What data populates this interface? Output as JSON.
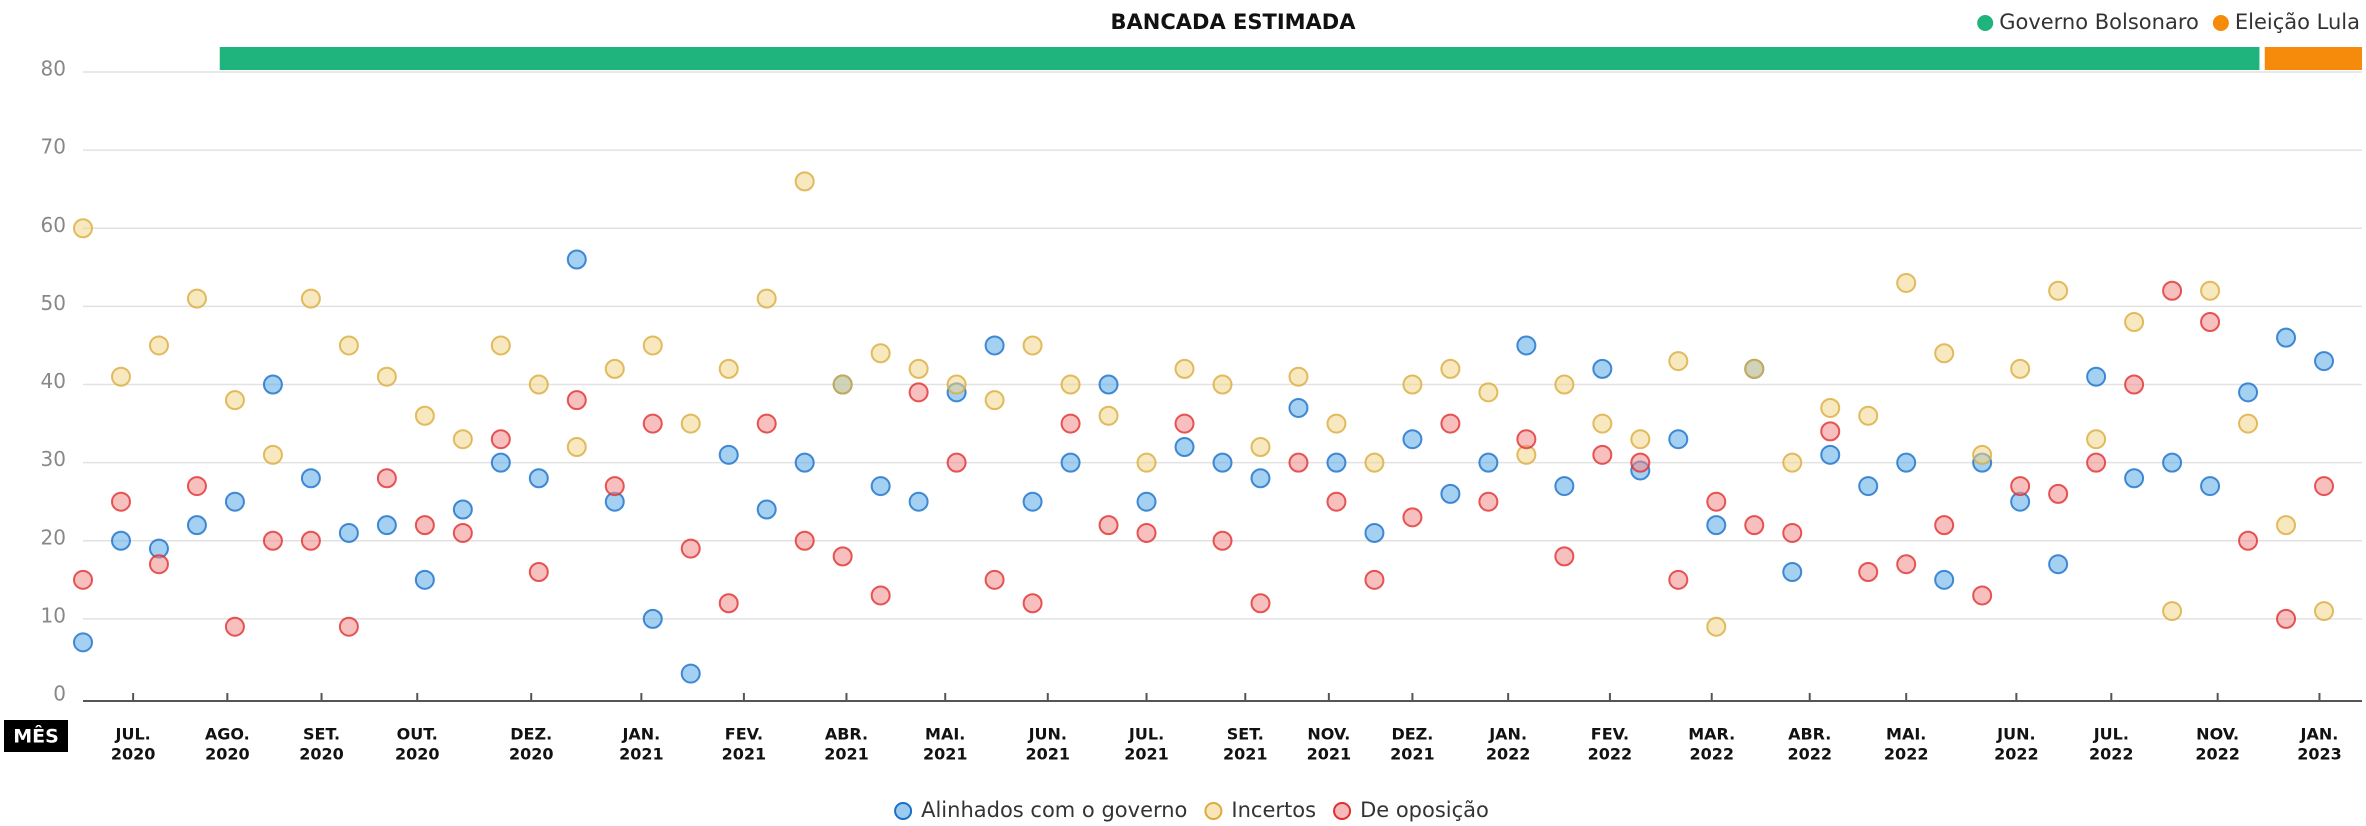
{
  "chart_data": {
    "type": "scatter",
    "title": "BANCADA ESTIMADA",
    "x_axis_name": "MÊS",
    "periods": [
      {
        "name": "Governo Bolsonaro",
        "color": "#1fb37e",
        "start": 18,
        "end": 286.5
      },
      {
        "name": "Eleição Lula",
        "color": "#f58a0b",
        "start": 287.2,
        "end": 300
      }
    ],
    "x": [
      0,
      5,
      10,
      15,
      20,
      25,
      30,
      35,
      40,
      45,
      50,
      55,
      60,
      65,
      70,
      75,
      80,
      85,
      90,
      95,
      100,
      105,
      110,
      115,
      120,
      125,
      130,
      135,
      140,
      145,
      150,
      155,
      160,
      165,
      170,
      175,
      180,
      185,
      190,
      195,
      200,
      205,
      210,
      215,
      220,
      225,
      230,
      235,
      240,
      245,
      250,
      255,
      260,
      265,
      270,
      275,
      280,
      285,
      290,
      295
    ],
    "xlim": [
      0,
      300
    ],
    "xticks": [
      {
        "value": 6.6,
        "label": "JUL.",
        "year": "2020"
      },
      {
        "value": 19,
        "label": "AGO.",
        "year": "2020"
      },
      {
        "value": 31.4,
        "label": "SET.",
        "year": "2020"
      },
      {
        "value": 44,
        "label": "OUT.",
        "year": "2020"
      },
      {
        "value": 59,
        "label": "DEZ.",
        "year": "2020"
      },
      {
        "value": 73.5,
        "label": "JAN.",
        "year": "2021"
      },
      {
        "value": 87,
        "label": "FEV.",
        "year": "2021"
      },
      {
        "value": 100.5,
        "label": "ABR.",
        "year": "2021"
      },
      {
        "value": 113.5,
        "label": "MAI.",
        "year": "2021"
      },
      {
        "value": 127,
        "label": "JUN.",
        "year": "2021"
      },
      {
        "value": 140,
        "label": "JUL.",
        "year": "2021"
      },
      {
        "value": 153,
        "label": "SET.",
        "year": "2021"
      },
      {
        "value": 164,
        "label": "NOV.",
        "year": "2021"
      },
      {
        "value": 175,
        "label": "DEZ.",
        "year": "2021"
      },
      {
        "value": 187.6,
        "label": "JAN.",
        "year": "2022"
      },
      {
        "value": 201,
        "label": "FEV.",
        "year": "2022"
      },
      {
        "value": 214.4,
        "label": "MAR.",
        "year": "2022"
      },
      {
        "value": 227.3,
        "label": "ABR.",
        "year": "2022"
      },
      {
        "value": 240,
        "label": "MAI.",
        "year": "2022"
      },
      {
        "value": 254.5,
        "label": "JUN.",
        "year": "2022"
      },
      {
        "value": 267,
        "label": "JUL.",
        "year": "2022"
      },
      {
        "value": 281,
        "label": "NOV.",
        "year": "2022"
      },
      {
        "value": 294.4,
        "label": "JAN.",
        "year": "2023"
      }
    ],
    "ylim": [
      0,
      80
    ],
    "yticks": [
      0,
      10,
      20,
      30,
      40,
      50,
      60,
      70,
      80
    ],
    "grid": true,
    "series": [
      {
        "name": "Alinhados com o governo",
        "color": "#5aa9e6",
        "stroke": "#1a6fc9",
        "values": [
          7,
          20,
          19,
          22,
          25,
          40,
          28,
          21,
          22,
          15,
          24,
          30,
          28,
          56,
          25,
          10,
          3,
          31,
          24,
          30,
          40,
          27,
          25,
          39,
          45,
          25,
          30,
          40,
          25,
          32,
          30,
          28,
          37,
          30,
          21,
          33,
          26,
          30,
          45,
          27,
          42,
          29,
          33,
          22,
          42,
          16,
          31,
          27,
          30,
          15,
          30,
          25,
          17,
          41,
          28,
          30,
          27,
          39,
          46,
          43
        ]
      },
      {
        "name": "Incertos",
        "color": "#f3d68a",
        "stroke": "#d9ad3c",
        "values": [
          60,
          41,
          45,
          51,
          38,
          31,
          51,
          45,
          41,
          36,
          33,
          45,
          40,
          32,
          42,
          45,
          35,
          42,
          51,
          66,
          40,
          44,
          42,
          40,
          38,
          45,
          40,
          36,
          30,
          42,
          40,
          32,
          41,
          35,
          30,
          40,
          42,
          39,
          31,
          40,
          35,
          33,
          43,
          9,
          42,
          30,
          37,
          36,
          53,
          44,
          31,
          42,
          52,
          33,
          48,
          11,
          52,
          35,
          22,
          11
        ]
      },
      {
        "name": "De oposição",
        "color": "#f28b8b",
        "stroke": "#e02f2f",
        "values": [
          15,
          25,
          17,
          27,
          9,
          20,
          20,
          9,
          28,
          22,
          21,
          33,
          16,
          38,
          27,
          35,
          19,
          12,
          35,
          20,
          18,
          13,
          39,
          30,
          15,
          12,
          35,
          22,
          21,
          35,
          20,
          12,
          30,
          25,
          15,
          23,
          35,
          25,
          33,
          18,
          31,
          30,
          15,
          25,
          22,
          21,
          34,
          16,
          17,
          22,
          13,
          27,
          26,
          30,
          40,
          52,
          48,
          20,
          10,
          27
        ]
      }
    ]
  }
}
